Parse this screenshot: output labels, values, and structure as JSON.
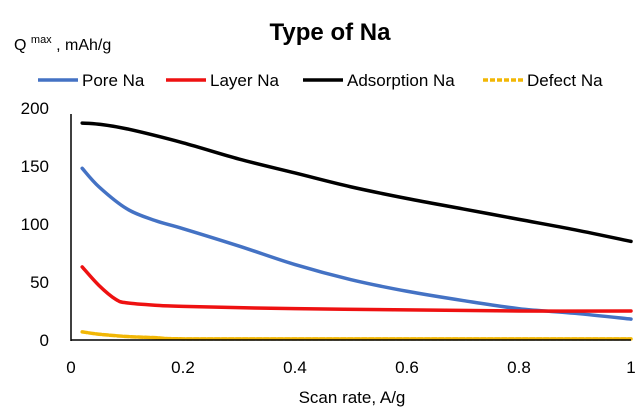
{
  "chart_data": {
    "type": "line",
    "title": "Type of Na",
    "ylabel_main": "Q",
    "ylabel_sup": "max",
    "ylabel_rest": ", mAh/g",
    "xlabel": "Scan rate, A/g",
    "xlim": [
      0,
      1
    ],
    "ylim": [
      0,
      200
    ],
    "xticks": [
      0,
      0.2,
      0.4,
      0.6,
      0.8,
      1
    ],
    "xtick_labels": [
      "0",
      "0.2",
      "0.4",
      "0.6",
      "0.8",
      "1"
    ],
    "yticks": [
      0,
      50,
      100,
      150,
      200
    ],
    "ytick_labels": [
      "0",
      "50",
      "100",
      "150",
      "200"
    ],
    "grid": false,
    "legend_position": "top",
    "series": [
      {
        "name": "Pore Na",
        "color": "#4472C4",
        "x": [
          0.02,
          0.05,
          0.1,
          0.15,
          0.2,
          0.3,
          0.4,
          0.5,
          0.6,
          0.7,
          0.8,
          0.9,
          1.0
        ],
        "y": [
          148,
          132,
          113,
          103,
          96,
          81,
          65,
          52,
          42,
          34,
          27,
          23,
          18
        ]
      },
      {
        "name": "Layer Na",
        "color": "#EE1111",
        "x": [
          0.02,
          0.05,
          0.08,
          0.1,
          0.15,
          0.2,
          0.4,
          0.6,
          0.8,
          1.0
        ],
        "y": [
          63,
          47,
          35,
          32,
          30,
          29,
          27,
          26,
          25,
          25
        ]
      },
      {
        "name": "Adsorption Na",
        "color": "#000000",
        "x": [
          0.02,
          0.05,
          0.1,
          0.2,
          0.3,
          0.4,
          0.5,
          0.6,
          0.7,
          0.8,
          0.9,
          1.0
        ],
        "y": [
          187,
          186,
          182,
          170,
          156,
          144,
          132,
          122,
          113,
          104,
          95,
          85
        ]
      },
      {
        "name": "Defect Na",
        "color": "#F2B705",
        "x": [
          0.02,
          0.05,
          0.1,
          0.15,
          0.2,
          0.4,
          0.6,
          0.8,
          1.0
        ],
        "y": [
          7,
          5,
          3,
          2,
          1,
          1,
          1,
          1,
          1
        ]
      }
    ]
  }
}
